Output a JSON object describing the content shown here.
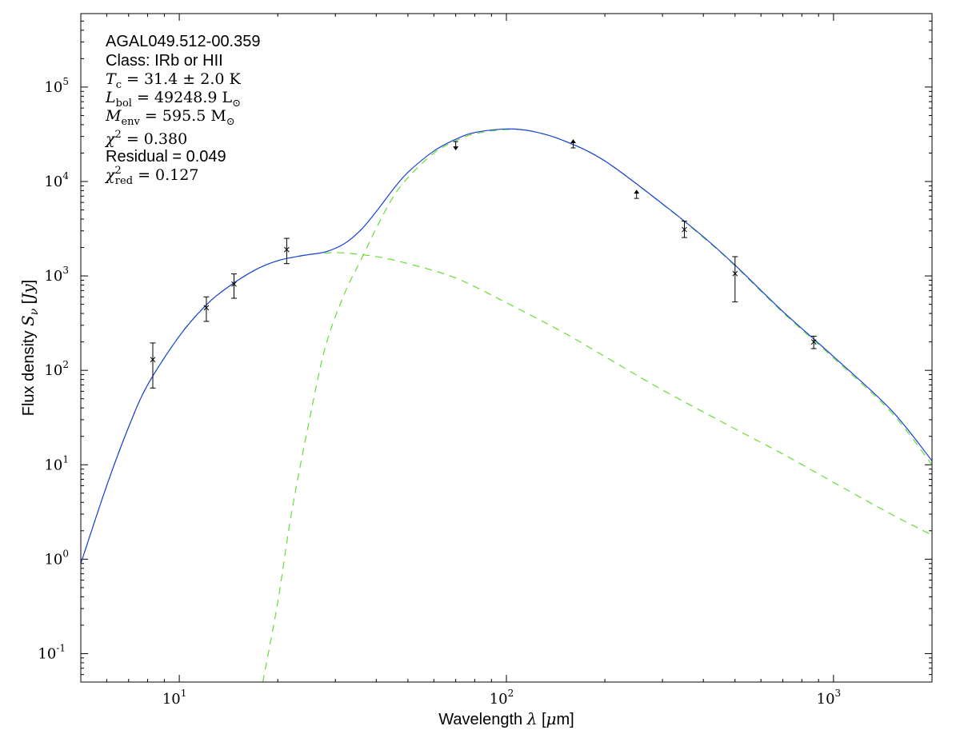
{
  "chart_data": {
    "type": "scatter",
    "x_scale": "log",
    "y_scale": "log",
    "xlim": [
      5,
      2000
    ],
    "ylim": [
      0.05,
      600000
    ],
    "grid": false,
    "xlabel": "Wavelength λ [μm]",
    "ylabel": "Flux density Sν [Jy]",
    "x_ticks": [
      10,
      100,
      1000
    ],
    "y_ticks": [
      0.1,
      1,
      10,
      100,
      1000,
      10000,
      100000
    ],
    "annotations": {
      "source": "AGAL049.512-00.359",
      "class": "Class: IRb or HII",
      "tc": "T_c = 31.4 ± 2.0 K",
      "lbol": "L_bol = 49248.9 L⊙",
      "menv": "M_env = 595.5 M⊙",
      "chi2": "χ² = 0.380",
      "residual": "Residual = 0.049",
      "chi2red": "χ²_red = 0.127"
    },
    "measurements": [
      {
        "wavelength": 8.3,
        "flux": 130,
        "err_low": 65,
        "err_high": 195,
        "kind": "point"
      },
      {
        "wavelength": 12.1,
        "flux": 460,
        "err_low": 330,
        "err_high": 600,
        "kind": "point"
      },
      {
        "wavelength": 14.7,
        "flux": 820,
        "err_low": 580,
        "err_high": 1050,
        "kind": "point"
      },
      {
        "wavelength": 21.3,
        "flux": 1900,
        "err_low": 1350,
        "err_high": 2500,
        "kind": "point"
      },
      {
        "wavelength": 70,
        "flux": 24000,
        "kind": "upper_limit"
      },
      {
        "wavelength": 160,
        "flux": 25000,
        "kind": "lower_limit"
      },
      {
        "wavelength": 250,
        "flux": 7300,
        "kind": "lower_limit"
      },
      {
        "wavelength": 350,
        "flux": 3100,
        "err_low": 2550,
        "err_high": 3800,
        "kind": "point"
      },
      {
        "wavelength": 500,
        "flux": 1060,
        "err_low": 530,
        "err_high": 1600,
        "kind": "point"
      },
      {
        "wavelength": 870,
        "flux": 200,
        "err_low": 170,
        "err_high": 230,
        "kind": "point"
      }
    ],
    "series": [
      {
        "kind": "total_fit",
        "color": "#1a3fd9",
        "style": "solid",
        "x": [
          5,
          6,
          7,
          8,
          10,
          12,
          14,
          17,
          20,
          24,
          28,
          32,
          36,
          40,
          45,
          50,
          60,
          70,
          80,
          100,
          120,
          150,
          200,
          300,
          400,
          500,
          700,
          1000,
          1500,
          2000
        ],
        "y": [
          0.9,
          6,
          25,
          70,
          230,
          480,
          750,
          1150,
          1450,
          1650,
          1800,
          2200,
          3100,
          4800,
          8200,
          12500,
          21000,
          28000,
          33000,
          36000,
          34000,
          27000,
          16500,
          5800,
          2600,
          1300,
          420,
          140,
          38,
          11
        ]
      },
      {
        "kind": "warm_component",
        "color": "#66dd33",
        "style": "dashed",
        "x": [
          5,
          6,
          7,
          8,
          10,
          12,
          14,
          17,
          20,
          24,
          28,
          32,
          40,
          50,
          70,
          100,
          150,
          200,
          300,
          500,
          700,
          1000,
          1500,
          2000
        ],
        "y": [
          0.9,
          6,
          25,
          70,
          230,
          480,
          750,
          1150,
          1450,
          1650,
          1750,
          1750,
          1600,
          1350,
          950,
          520,
          250,
          140,
          62,
          24,
          13,
          6.5,
          3.0,
          1.8
        ]
      },
      {
        "kind": "cold_component",
        "color": "#66dd33",
        "style": "dashed",
        "x": [
          18,
          20,
          22,
          25,
          28,
          32,
          36,
          40,
          45,
          50,
          60,
          70,
          80,
          100,
          120,
          150,
          200,
          300,
          400,
          500,
          700,
          1000,
          1500,
          2000
        ],
        "y": [
          0.05,
          0.35,
          3,
          30,
          180,
          650,
          1500,
          3200,
          6800,
          11000,
          20000,
          27000,
          32000,
          35500,
          34000,
          27000,
          16500,
          5750,
          2550,
          1280,
          410,
          135,
          36,
          10
        ]
      }
    ]
  }
}
